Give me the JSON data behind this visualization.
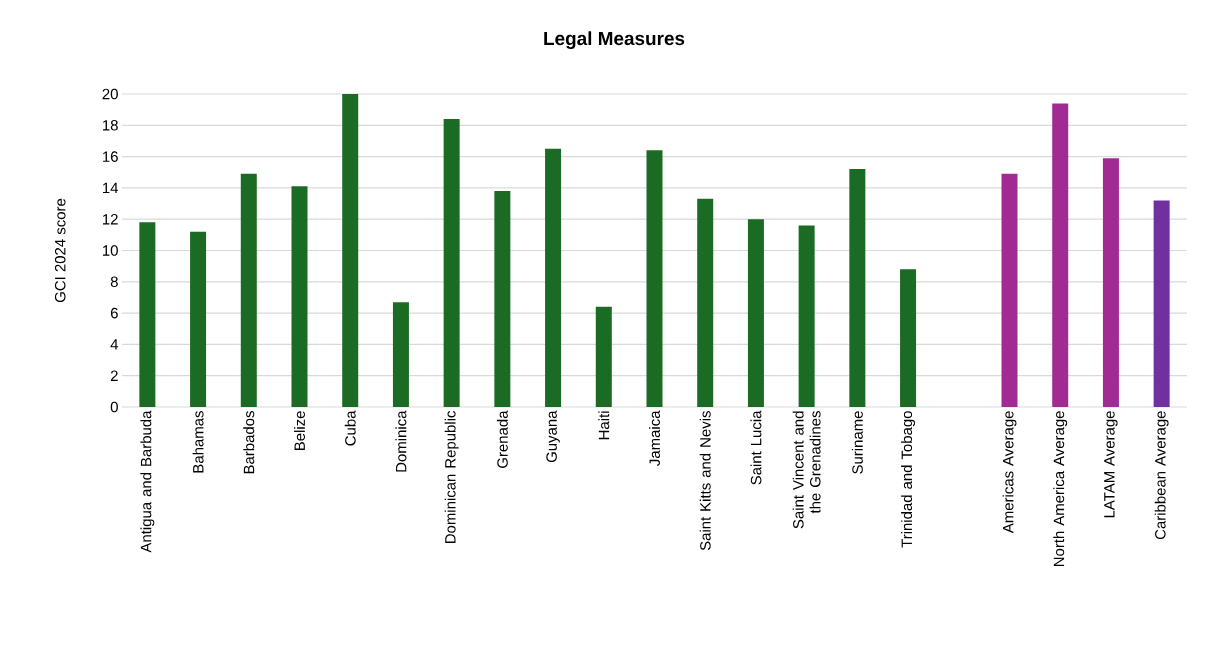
{
  "chart_data": {
    "type": "bar",
    "title": "Legal Measures",
    "ylabel": "GCI 2024 score",
    "categories": [
      "Antigua and Barbuda",
      "Bahamas",
      "Barbados",
      "Belize",
      "Cuba",
      "Dominica",
      "Dominican Republic",
      "Grenada",
      "Guyana",
      "Haiti",
      "Jamaica",
      "Saint Kitts and Nevis",
      "Saint Lucia",
      "Saint Vincent and the Grenadines",
      "Suriname",
      "Trinidad and Tobago",
      null,
      "Americas Average",
      "North America Average",
      "LATAM Average",
      "Caribbean Average"
    ],
    "values": [
      11.8,
      11.2,
      14.9,
      14.1,
      20,
      6.7,
      18.4,
      13.8,
      16.5,
      6.4,
      16.4,
      13.3,
      12.0,
      11.6,
      15.2,
      8.8,
      null,
      14.9,
      19.4,
      15.9,
      13.2
    ],
    "colors": [
      "#1b6b24",
      "#1b6b24",
      "#1b6b24",
      "#1b6b24",
      "#1b6b24",
      "#1b6b24",
      "#1b6b24",
      "#1b6b24",
      "#1b6b24",
      "#1b6b24",
      "#1b6b24",
      "#1b6b24",
      "#1b6b24",
      "#1b6b24",
      "#1b6b24",
      "#1b6b24",
      "#1b6b24",
      "#a02b93",
      "#a02b93",
      "#a02b93",
      "#7030a0"
    ],
    "ylim": [
      0,
      20
    ],
    "yticks": [
      0,
      2,
      4,
      6,
      8,
      10,
      12,
      14,
      16,
      18,
      20
    ],
    "grid": "y"
  }
}
